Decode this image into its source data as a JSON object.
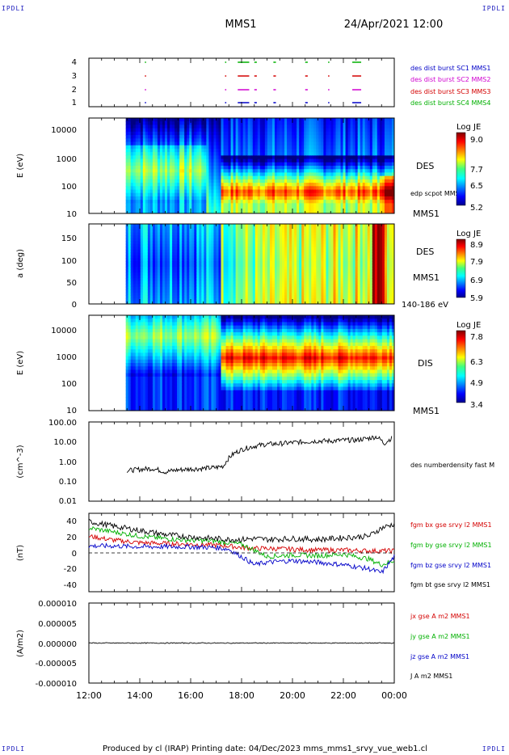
{
  "corners": {
    "tl": "IPDLI",
    "tr": "IPDLI",
    "bl": "IPDLI",
    "br": "IPDLI"
  },
  "header": {
    "spacecraft": "MMS1",
    "date": "24/Apr/2021 12:00"
  },
  "footer": "Produced by cl (IRAP)   Printing date: 04/Dec/2023   mms_mms1_srvy_vue_web1.cl",
  "colors": {
    "red": "#d40000",
    "magenta": "#d000d0",
    "blue": "#0000c8",
    "green": "#00b000",
    "black": "#000000"
  },
  "chart_data": [
    {
      "type": "scatter",
      "id": "burst",
      "yticks": [
        "4",
        "3",
        "2",
        "1"
      ],
      "ylim": [
        0.5,
        4.5
      ],
      "legend": [
        {
          "label": "des dist burst SC1 MMS1",
          "color": "#0000c8"
        },
        {
          "label": "des dist burst SC2 MMS2",
          "color": "#d000d0"
        },
        {
          "label": "des dist burst SC3 MMS3",
          "color": "#d40000"
        },
        {
          "label": "des dist burst SC4 MMS4",
          "color": "#00b000"
        }
      ],
      "intervals_hours": [
        [
          14.2,
          14.22
        ],
        [
          17.35,
          17.4
        ],
        [
          17.85,
          18.3
        ],
        [
          18.5,
          18.6
        ],
        [
          19.25,
          19.35
        ],
        [
          20.5,
          20.6
        ],
        [
          21.4,
          21.45
        ],
        [
          22.35,
          22.7
        ]
      ]
    },
    {
      "type": "heatmap",
      "id": "des-energy",
      "ylabel": "E (eV)",
      "yscale": "log",
      "ylim": [
        10,
        30000
      ],
      "yticks": [
        "10000",
        "1000",
        "100",
        "10"
      ],
      "colorbar": {
        "title": "Log JE",
        "max": "9.0",
        "mid1": "7.7",
        "mid2": "6.5",
        "min": "5.2"
      },
      "labels": [
        "DES",
        "edp scpot MMS1",
        "MMS1"
      ]
    },
    {
      "type": "heatmap",
      "id": "des-pitch",
      "ylabel": "a (deg)",
      "ylim": [
        0,
        180
      ],
      "yticks": [
        "150",
        "100",
        "50",
        "0"
      ],
      "colorbar": {
        "title": "Log JE",
        "max": "8.9",
        "mid1": "7.9",
        "mid2": "6.9",
        "min": "5.9"
      },
      "labels": [
        "DES",
        "MMS1",
        "140-186 eV"
      ]
    },
    {
      "type": "heatmap",
      "id": "dis-energy",
      "ylabel": "E (eV)",
      "yscale": "log",
      "ylim": [
        10,
        30000
      ],
      "yticks": [
        "10000",
        "1000",
        "100",
        "10"
      ],
      "colorbar": {
        "title": "Log JE",
        "max": "7.8",
        "mid1": "6.3",
        "mid2": "4.9",
        "min": "3.4"
      },
      "labels": [
        "DIS",
        "MMS1"
      ]
    },
    {
      "type": "line",
      "id": "density",
      "ylabel": "(cm^-3)",
      "yscale": "log",
      "ylim": [
        0.01,
        100
      ],
      "yticks": [
        "100.00",
        "10.00",
        "1.00",
        "0.10",
        "0.01"
      ],
      "series": [
        {
          "name": "des numberdensity fast M",
          "color": "#000000",
          "x": [
            13.5,
            14.0,
            14.5,
            15.0,
            15.5,
            16.0,
            16.5,
            17.0,
            17.3,
            17.5,
            17.7,
            18.0,
            18.5,
            19.0,
            19.5,
            20.0,
            20.5,
            21.0,
            21.5,
            22.0,
            22.5,
            23.0,
            23.3,
            23.6,
            23.9
          ],
          "values": [
            0.35,
            0.4,
            0.45,
            0.3,
            0.38,
            0.42,
            0.45,
            0.5,
            0.6,
            1.5,
            2.5,
            4.0,
            6.0,
            7.5,
            8.0,
            9.0,
            10.0,
            11.0,
            11.0,
            12.0,
            12.0,
            15.0,
            18.0,
            8.0,
            15.0
          ]
        }
      ]
    },
    {
      "type": "line",
      "id": "bfield",
      "ylabel": "(nT)",
      "ylim": [
        -48,
        48
      ],
      "yticks": [
        "40",
        "20",
        "0",
        "-20",
        "-40"
      ],
      "series": [
        {
          "name": "fgm bx gse srvy l2 MMS1",
          "color": "#d40000",
          "x": [
            12.0,
            13.0,
            14.0,
            15.0,
            16.0,
            17.0,
            17.5,
            18.0,
            18.5,
            19.0,
            20.0,
            21.0,
            22.0,
            23.0,
            23.5,
            24.0
          ],
          "values": [
            20,
            15,
            12,
            11,
            10,
            9,
            8,
            6,
            5,
            5,
            4,
            3,
            3,
            2,
            2,
            2
          ]
        },
        {
          "name": "fgm by gse srvy l2 MMS1",
          "color": "#00b000",
          "x": [
            12.0,
            13.0,
            14.0,
            15.0,
            16.0,
            17.0,
            17.5,
            18.0,
            18.5,
            19.0,
            20.0,
            21.0,
            22.0,
            23.0,
            23.5,
            24.0
          ],
          "values": [
            30,
            25,
            20,
            17,
            15,
            14,
            12,
            10,
            3,
            -5,
            -3,
            -4,
            -2,
            -8,
            -15,
            -10
          ]
        },
        {
          "name": "fgm bz gse srvy l2 MMS1",
          "color": "#0000c8",
          "x": [
            12.0,
            13.0,
            14.0,
            15.0,
            16.0,
            17.0,
            17.5,
            18.0,
            18.5,
            19.0,
            20.0,
            21.0,
            22.0,
            23.0,
            23.5,
            24.0
          ],
          "values": [
            8,
            8,
            7,
            7,
            7,
            6,
            4,
            -5,
            -15,
            -12,
            -10,
            -12,
            -15,
            -20,
            -25,
            -5
          ]
        },
        {
          "name": "fgm bt gse srvy l2 MMS1",
          "color": "#000000",
          "x": [
            12.0,
            13.0,
            14.0,
            15.0,
            16.0,
            17.0,
            17.5,
            18.0,
            18.5,
            19.0,
            20.0,
            21.0,
            22.0,
            23.0,
            23.5,
            24.0
          ],
          "values": [
            38,
            32,
            27,
            22,
            19,
            17,
            16,
            16,
            17,
            16,
            17,
            16,
            18,
            20,
            30,
            35
          ]
        }
      ]
    },
    {
      "type": "line",
      "id": "current",
      "ylabel": "(A/m2)",
      "ylim": [
        -1e-05,
        1e-05
      ],
      "yticks": [
        "0.000010",
        "0.000005",
        "0.000000",
        "-0.000005",
        "-0.000010"
      ],
      "series": [
        {
          "name": "jx gse A m2 MMS1",
          "color": "#d40000"
        },
        {
          "name": "jy gse A m2 MMS1",
          "color": "#00b000"
        },
        {
          "name": "jz gse A m2 MMS1",
          "color": "#0000c8"
        },
        {
          "name": "J A m2 MMS1",
          "color": "#000000"
        }
      ],
      "x": [
        12,
        13.5,
        15,
        17,
        18,
        20,
        22,
        23,
        24
      ],
      "values": [
        0,
        0,
        0,
        0,
        0,
        0,
        0,
        0,
        0
      ]
    }
  ],
  "xaxis": {
    "ticks": [
      "12:00",
      "14:00",
      "16:00",
      "18:00",
      "20:00",
      "22:00",
      "00:00"
    ],
    "range_hours": [
      12,
      24
    ]
  }
}
